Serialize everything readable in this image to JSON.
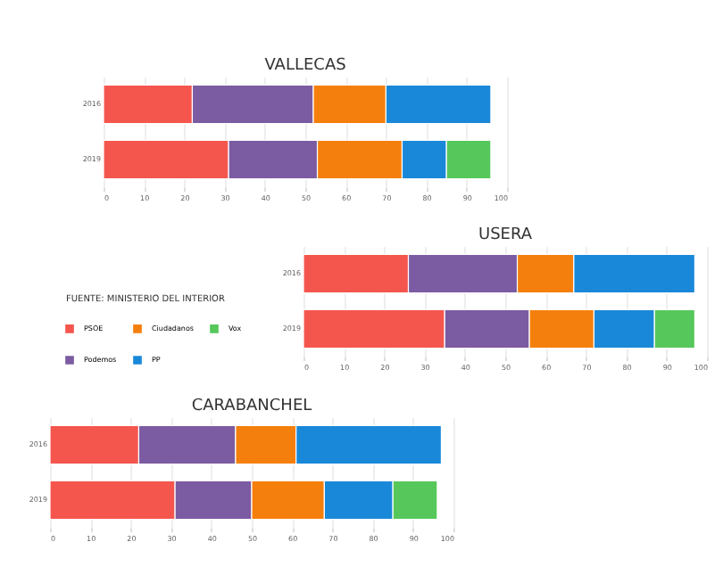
{
  "chart_data": [
    {
      "type": "bar",
      "title": "VALLECAS",
      "orientation": "horizontal",
      "stacked": true,
      "categories": [
        "2016",
        "2019"
      ],
      "xlim": [
        0,
        100
      ],
      "xticks": [
        0,
        10,
        20,
        30,
        40,
        50,
        60,
        70,
        80,
        90,
        100
      ],
      "grid": "x",
      "legend": false,
      "series": [
        {
          "color": "#f4564e",
          "values": [
            22,
            31
          ]
        },
        {
          "color": "#7b5ba1",
          "values": [
            30,
            22
          ]
        },
        {
          "color": "#f57f0c",
          "values": [
            18,
            21
          ]
        },
        {
          "color": "#1a88d8",
          "values": [
            26,
            11
          ]
        },
        {
          "color": "#56c85b",
          "values": [
            null,
            11
          ]
        }
      ]
    },
    {
      "type": "bar",
      "title": "USERA",
      "orientation": "horizontal",
      "stacked": true,
      "categories": [
        "2016",
        "2019"
      ],
      "xlim": [
        0,
        100
      ],
      "xticks": [
        0,
        10,
        20,
        30,
        40,
        50,
        60,
        70,
        80,
        90,
        100
      ],
      "grid": "x",
      "legend": "left",
      "annotations": [
        "FUENTE: MINISTERIO DEL INTERIOR"
      ],
      "series": [
        {
          "name": "PSOE",
          "color": "#f4564e",
          "values": [
            26,
            35
          ]
        },
        {
          "name": "Podemos",
          "color": "#7b5ba1",
          "values": [
            27,
            21
          ]
        },
        {
          "name": "Ciudadanos",
          "color": "#f57f0c",
          "values": [
            14,
            16
          ]
        },
        {
          "name": "PP",
          "color": "#1a88d8",
          "values": [
            30,
            15
          ]
        },
        {
          "name": "Vox",
          "color": "#56c85b",
          "values": [
            null,
            10
          ]
        }
      ]
    },
    {
      "type": "bar",
      "title": "CARABANCHEL",
      "orientation": "horizontal",
      "stacked": true,
      "categories": [
        "2016",
        "2019"
      ],
      "xlim": [
        0,
        100
      ],
      "xticks": [
        0,
        10,
        20,
        30,
        40,
        50,
        60,
        70,
        80,
        90,
        100
      ],
      "grid": "x",
      "legend": false,
      "series": [
        {
          "color": "#f4564e",
          "values": [
            22,
            31
          ]
        },
        {
          "color": "#7b5ba1",
          "values": [
            24,
            19
          ]
        },
        {
          "color": "#f57f0c",
          "values": [
            15,
            18
          ]
        },
        {
          "color": "#1a88d8",
          "values": [
            36,
            17
          ]
        },
        {
          "color": "#56c85b",
          "values": [
            null,
            11
          ]
        }
      ]
    }
  ]
}
